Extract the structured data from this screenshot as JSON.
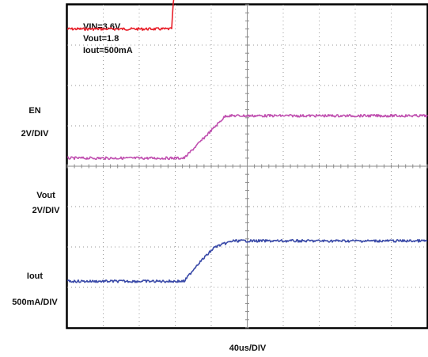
{
  "chart_data": {
    "type": "line",
    "title": "",
    "xlabel": "40us/DIV",
    "ylabel": "",
    "grid": true,
    "x_divisions": 10,
    "y_divisions": 8,
    "x_time_per_div_us": 40,
    "annotations": [
      "VIN=3.6V",
      "Vout=1.8",
      "Iout=500mA"
    ],
    "series": [
      {
        "name": "EN",
        "scale": "2V/DIV",
        "color": "#e8202a",
        "x_div": [
          0,
          2.9,
          2.95,
          3.0,
          3.05,
          3.1,
          3.25,
          3.35,
          3.45,
          3.55,
          10
        ],
        "y_div": [
          7.4,
          7.4,
          8.1,
          8.3,
          8.35,
          8.5,
          8.7,
          9.2,
          9.8,
          9.8,
          9.8
        ]
      },
      {
        "name": "Vout",
        "scale": "2V/DIV",
        "color": "#c050b0",
        "x_div": [
          0,
          3.25,
          4.4,
          10
        ],
        "y_div": [
          4.2,
          4.2,
          5.25,
          5.25
        ]
      },
      {
        "name": "Iout",
        "scale": "500mA/DIV",
        "color": "#3a4aa8",
        "x_div": [
          0,
          3.25,
          3.6,
          4.1,
          4.6,
          10
        ],
        "y_div": [
          1.15,
          1.15,
          1.55,
          2.0,
          2.15,
          2.15
        ]
      }
    ]
  },
  "labels": {
    "en_name": "EN",
    "en_scale": "2V/DIV",
    "vout_name": "Vout",
    "vout_scale": "2V/DIV",
    "iout_name": "Iout",
    "iout_scale": "500mA/DIV",
    "time_scale": "40us/DIV"
  }
}
